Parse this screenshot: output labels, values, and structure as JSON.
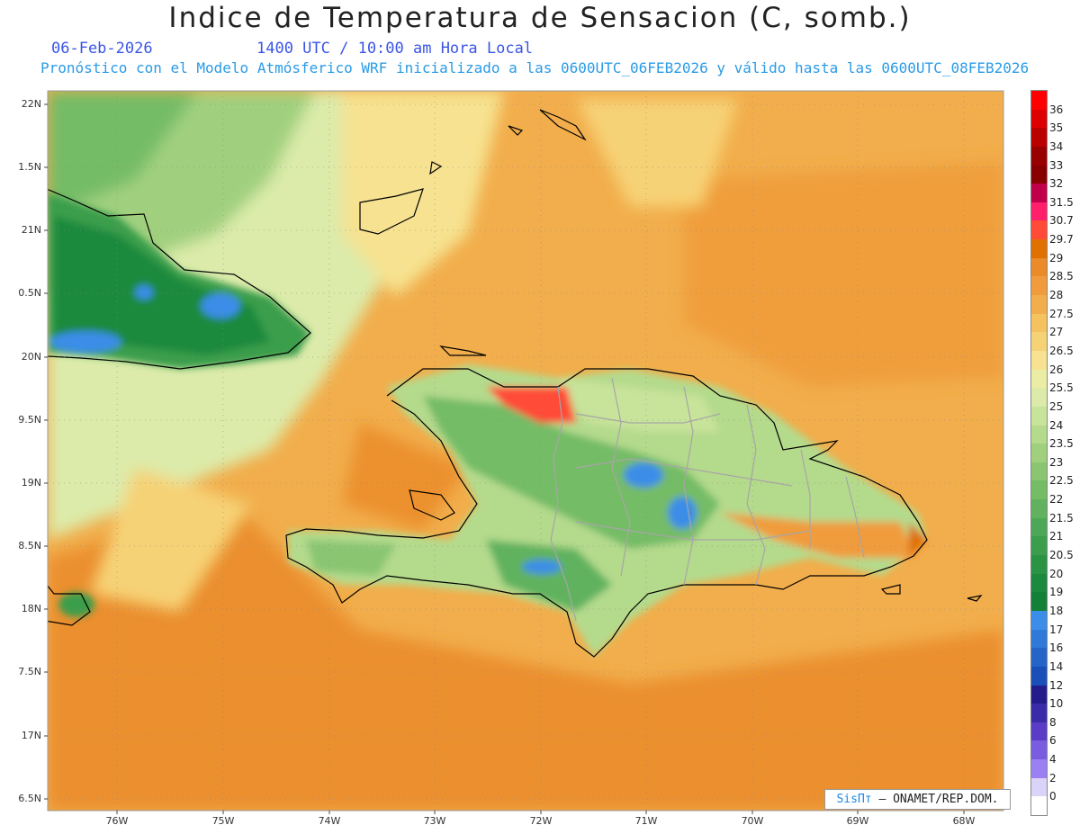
{
  "header": {
    "title": "Indice de Temperatura de Sensacion (C, somb.)",
    "date": "06-Feb-2026",
    "time": "1400 UTC / 10:00 am Hora Local",
    "model_line": "Pronóstico con el Modelo Atmósferico WRF inicializado a las 0600UTC_06FEB2026 y válido hasta las  0600UTC_08FEB2026"
  },
  "axes": {
    "lat_labels": [
      "22N",
      "1.5N",
      "21N",
      "0.5N",
      "20N",
      "9.5N",
      "19N",
      "8.5N",
      "18N",
      "7.5N",
      "17N",
      "6.5N"
    ],
    "lon_labels": [
      "76W",
      "75W",
      "74W",
      "73W",
      "72W",
      "71W",
      "70W",
      "69W",
      "68W"
    ]
  },
  "legend": {
    "labels": [
      "36",
      "35",
      "34",
      "33",
      "32",
      "31.5",
      "30.7",
      "29.7",
      "29",
      "28.5",
      "28",
      "27.5",
      "27",
      "26.5",
      "26",
      "25.5",
      "25",
      "24",
      "23.5",
      "23",
      "22.5",
      "22",
      "21.5",
      "21",
      "20.5",
      "20",
      "19",
      "18",
      "17",
      "16",
      "14",
      "12",
      "10",
      "8",
      "6",
      "4",
      "2",
      "0"
    ],
    "colors": [
      "#ff0000",
      "#dd0000",
      "#bb0000",
      "#990000",
      "#880000",
      "#c0004a",
      "#ff1f6a",
      "#ff4b37",
      "#e07000",
      "#ea8a28",
      "#f09c3c",
      "#f2ae4c",
      "#f4c25e",
      "#f6d276",
      "#f6e290",
      "#eceda4",
      "#dcebaa",
      "#c8e39a",
      "#b4da8c",
      "#a0d07e",
      "#8ac672",
      "#74bc66",
      "#60b25e",
      "#4ca856",
      "#3a9e4c",
      "#2a9444",
      "#1c8a3e",
      "#128036",
      "#3b8de8",
      "#2f7ad8",
      "#2565c8",
      "#1a4eb8",
      "#241c8c",
      "#3a2ca8",
      "#5a3cc6",
      "#7a5ce0",
      "#9a80f0",
      "#dad4f8"
    ],
    "bottom_color": "#ffffff"
  },
  "credit": {
    "brand": "SisПт",
    "text": " – ONAMET/REP.DOM."
  }
}
